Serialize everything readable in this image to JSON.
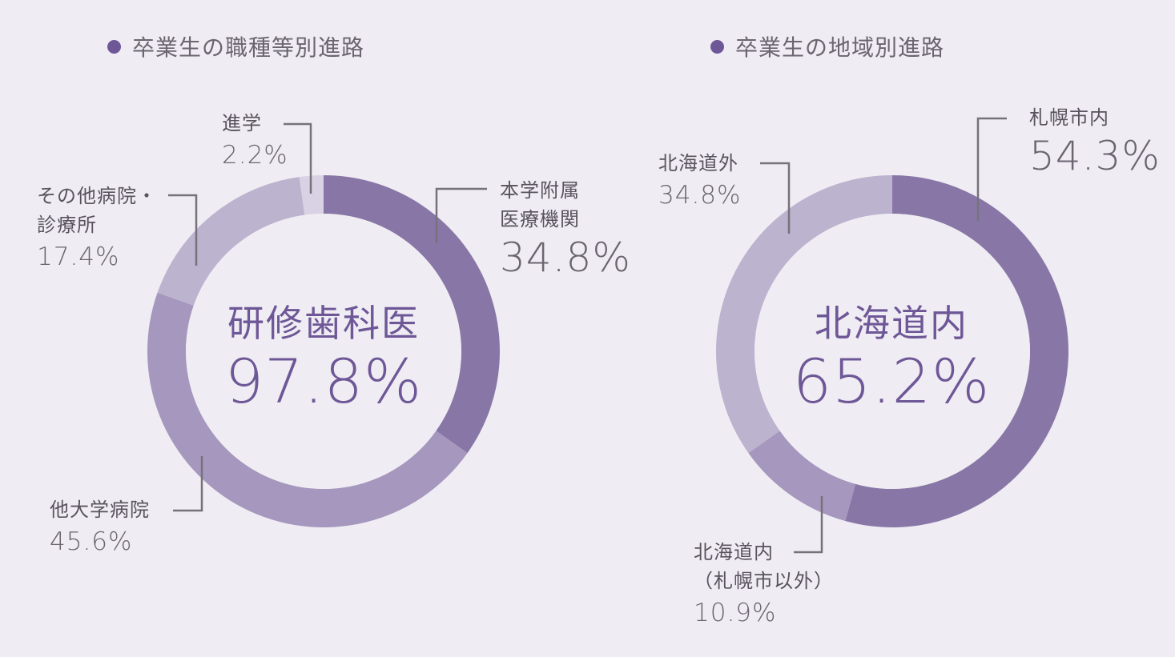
{
  "charts": [
    {
      "title": "卒業生の職種等別進路",
      "center": {
        "label": "研修歯科医",
        "value": "97.8%"
      },
      "slices": [
        {
          "label": "本学附属医療機関",
          "label_lines": [
            "本学附属",
            "医療機関"
          ],
          "value_text": "34.8%"
        },
        {
          "label": "他大学病院",
          "label_lines": [
            "他大学病院"
          ],
          "value_text": "45.6%"
        },
        {
          "label": "その他病院・診療所",
          "label_lines": [
            "その他病院・",
            "診療所"
          ],
          "value_text": "17.4%"
        },
        {
          "label": "進学",
          "label_lines": [
            "進学"
          ],
          "value_text": "2.2%"
        }
      ]
    },
    {
      "title": "卒業生の地域別進路",
      "center": {
        "label": "北海道内",
        "value": "65.2%"
      },
      "slices": [
        {
          "label": "札幌市内",
          "label_lines": [
            "札幌市内"
          ],
          "value_text": "54.3%"
        },
        {
          "label": "北海道内（札幌市以外）",
          "label_lines": [
            "北海道内",
            "（札幌市以外）"
          ],
          "value_text": "10.9%"
        },
        {
          "label": "北海道外",
          "label_lines": [
            "北海道外"
          ],
          "value_text": "34.8%"
        }
      ]
    }
  ],
  "chart_data": [
    {
      "type": "pie",
      "title": "卒業生の職種等別進路",
      "categories": [
        "本学附属医療機関",
        "他大学病院",
        "その他病院・診療所",
        "進学"
      ],
      "values": [
        34.8,
        45.6,
        17.4,
        2.2
      ],
      "unit": "%",
      "colors": [
        "#8877a6",
        "#a597bd",
        "#bcb3cf",
        "#d9d2e4"
      ],
      "center_label": "研修歯科医",
      "center_value": 97.8,
      "legend": "none"
    },
    {
      "type": "pie",
      "title": "卒業生の地域別進路",
      "categories": [
        "札幌市内",
        "北海道内（札幌市以外）",
        "北海道外"
      ],
      "values": [
        54.3,
        10.9,
        34.8
      ],
      "unit": "%",
      "colors": [
        "#8877a6",
        "#a597bd",
        "#bcb3cf"
      ],
      "center_label": "北海道内",
      "center_value": 65.2,
      "legend": "none"
    }
  ],
  "colors": {
    "background": "#efecf3",
    "accent": "#6e5797",
    "text": "#58535e",
    "leader_line": "#76727a"
  },
  "icons": {
    "title_bullet": "filled-circle-icon"
  }
}
